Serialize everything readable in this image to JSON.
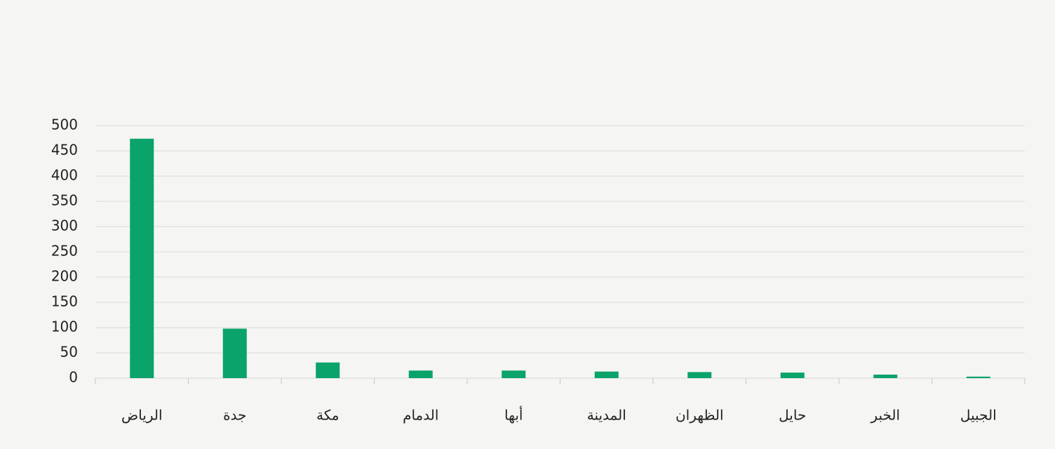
{
  "chart_data": {
    "type": "bar",
    "categories": [
      "الرياض",
      "جدة",
      "مكة",
      "الدمام",
      "أبها",
      "المدينة",
      "الظهران",
      "حايل",
      "الخبر",
      "الجبيل"
    ],
    "values": [
      474,
      98,
      31,
      15,
      15,
      13,
      12,
      11,
      7,
      3
    ],
    "color": "#0aa36a",
    "ylim": [
      0,
      500
    ],
    "yticks": [
      0,
      50,
      100,
      150,
      200,
      250,
      300,
      350,
      400,
      450,
      500
    ],
    "grid": true
  }
}
